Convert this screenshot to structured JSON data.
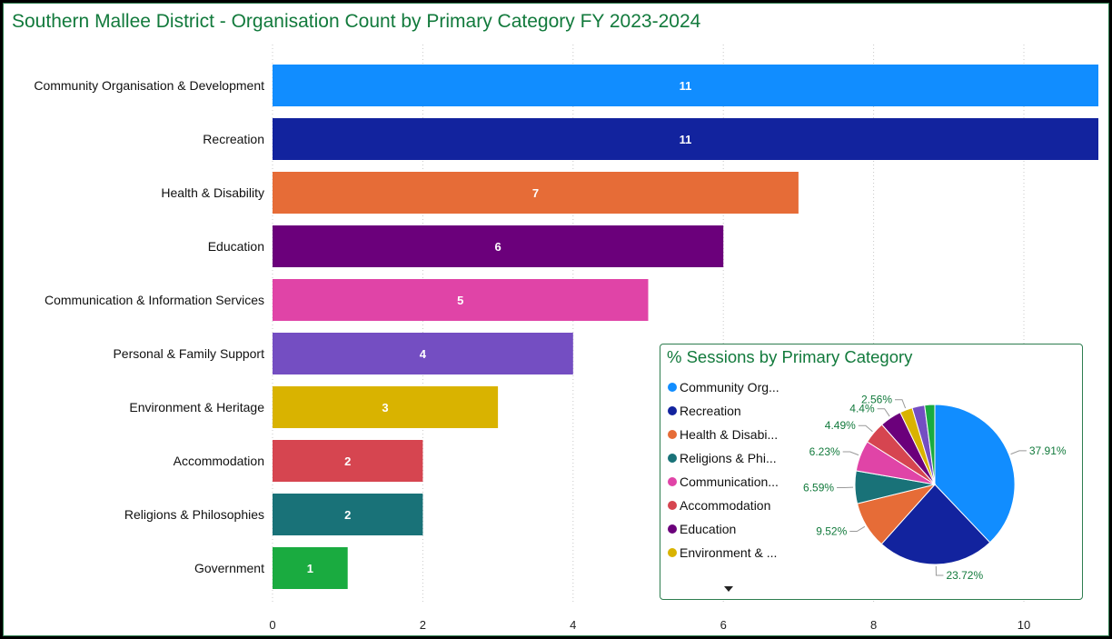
{
  "page": {
    "title": "Southern Mallee District - Organisation Count by Primary Category FY 2023-2024"
  },
  "chart_data": [
    {
      "type": "bar",
      "orientation": "horizontal",
      "title": "Southern Mallee District - Organisation Count by Primary Category FY 2023-2024",
      "categories": [
        "Community Organisation & Development",
        "Recreation",
        "Health & Disability",
        "Education",
        "Communication & Information Services",
        "Personal & Family Support",
        "Environment & Heritage",
        "Accommodation",
        "Religions & Philosophies",
        "Government"
      ],
      "values": [
        11,
        11,
        7,
        6,
        5,
        4,
        3,
        2,
        2,
        1
      ],
      "colors": [
        "#118dff",
        "#12239e",
        "#e66c37",
        "#6b007b",
        "#e044a7",
        "#744ec2",
        "#d9b300",
        "#d64550",
        "#197278",
        "#1aab40"
      ],
      "xticks": [
        "0",
        "2",
        "4",
        "6",
        "8",
        "10"
      ],
      "xlim": [
        0,
        11
      ],
      "data_labels": true,
      "grid": "vertical dotted"
    },
    {
      "type": "pie",
      "title": "% Sessions by Primary Category",
      "legend": [
        {
          "label": "Community Org...",
          "color": "#118dff"
        },
        {
          "label": "Recreation",
          "color": "#12239e"
        },
        {
          "label": "Health & Disabi...",
          "color": "#e66c37"
        },
        {
          "label": "Religions & Phi...",
          "color": "#197278"
        },
        {
          "label": "Communication...",
          "color": "#e044a7"
        },
        {
          "label": "Accommodation",
          "color": "#d64550"
        },
        {
          "label": "Education",
          "color": "#6b007b"
        },
        {
          "label": "Environment & ...",
          "color": "#d9b300"
        }
      ],
      "slices": [
        {
          "value": 37.91,
          "label": "37.91%",
          "color": "#118dff"
        },
        {
          "value": 23.72,
          "label": "23.72%",
          "color": "#12239e"
        },
        {
          "value": 9.52,
          "label": "9.52%",
          "color": "#e66c37"
        },
        {
          "value": 6.59,
          "label": "6.59%",
          "color": "#197278"
        },
        {
          "value": 6.23,
          "label": "6.23%",
          "color": "#e044a7"
        },
        {
          "value": 4.49,
          "label": "4.49%",
          "color": "#d64550"
        },
        {
          "value": 4.4,
          "label": "4.4%",
          "color": "#6b007b"
        },
        {
          "value": 2.56,
          "label": "2.56%",
          "color": "#d9b300"
        },
        {
          "value": 2.53,
          "label": "",
          "color": "#744ec2"
        },
        {
          "value": 2.05,
          "label": "",
          "color": "#1aab40"
        }
      ],
      "legend_placement": "left"
    }
  ]
}
